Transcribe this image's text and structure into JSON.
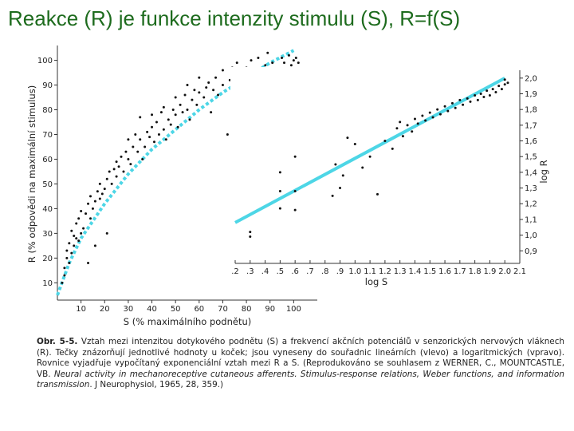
{
  "title": "Reakce (R) je funkce intenzity stimulu (S), R=f(S)",
  "colors": {
    "title": "#1d6b1d",
    "fit_line": "#4dd6e6",
    "points": "#111111"
  },
  "chart_data": [
    {
      "type": "scatter",
      "panel": "left",
      "xlabel": "S (% maximálního podnětu)",
      "ylabel": "R (% odpovědi na maximální stimulus)",
      "xlim": [
        0,
        110
      ],
      "ylim": [
        3,
        106
      ],
      "x_ticks": [
        "10",
        "20",
        "30",
        "40",
        "50",
        "60",
        "70",
        "80",
        "90",
        "100"
      ],
      "y_ticks": [
        "10",
        "20",
        "30",
        "40",
        "50",
        "60",
        "70",
        "80",
        "90",
        "100"
      ],
      "fit_curve": {
        "x": [
          0,
          5,
          10,
          20,
          30,
          40,
          50,
          60,
          70,
          80,
          90,
          100
        ],
        "y": [
          5,
          18,
          28,
          42,
          54,
          64,
          72,
          80,
          87,
          93,
          99,
          104
        ]
      },
      "points": [
        [
          2,
          10
        ],
        [
          3,
          13
        ],
        [
          3,
          16
        ],
        [
          4,
          20
        ],
        [
          4,
          23
        ],
        [
          5,
          18
        ],
        [
          5,
          26
        ],
        [
          6,
          22
        ],
        [
          6,
          31
        ],
        [
          7,
          25
        ],
        [
          7,
          29
        ],
        [
          8,
          28
        ],
        [
          8,
          34
        ],
        [
          9,
          27
        ],
        [
          9,
          36
        ],
        [
          10,
          30
        ],
        [
          10,
          39
        ],
        [
          11,
          32
        ],
        [
          12,
          38
        ],
        [
          13,
          18
        ],
        [
          13,
          42
        ],
        [
          14,
          36
        ],
        [
          14,
          45
        ],
        [
          15,
          40
        ],
        [
          16,
          25
        ],
        [
          16,
          43
        ],
        [
          17,
          47
        ],
        [
          18,
          44
        ],
        [
          18,
          50
        ],
        [
          19,
          46
        ],
        [
          20,
          48
        ],
        [
          21,
          30
        ],
        [
          21,
          52
        ],
        [
          22,
          55
        ],
        [
          23,
          50
        ],
        [
          24,
          56
        ],
        [
          25,
          53
        ],
        [
          25,
          59
        ],
        [
          26,
          57
        ],
        [
          27,
          61
        ],
        [
          28,
          55
        ],
        [
          29,
          63
        ],
        [
          30,
          60
        ],
        [
          30,
          68
        ],
        [
          31,
          58
        ],
        [
          32,
          65
        ],
        [
          33,
          70
        ],
        [
          34,
          63
        ],
        [
          35,
          68
        ],
        [
          35,
          77
        ],
        [
          36,
          60
        ],
        [
          37,
          65
        ],
        [
          38,
          71
        ],
        [
          39,
          69
        ],
        [
          40,
          73
        ],
        [
          40,
          78
        ],
        [
          41,
          67
        ],
        [
          42,
          75
        ],
        [
          43,
          70
        ],
        [
          44,
          79
        ],
        [
          45,
          72
        ],
        [
          45,
          81
        ],
        [
          46,
          68
        ],
        [
          47,
          76
        ],
        [
          48,
          74
        ],
        [
          49,
          80
        ],
        [
          50,
          78
        ],
        [
          50,
          85
        ],
        [
          51,
          73
        ],
        [
          52,
          82
        ],
        [
          53,
          79
        ],
        [
          54,
          86
        ],
        [
          55,
          80
        ],
        [
          55,
          90
        ],
        [
          56,
          76
        ],
        [
          57,
          84
        ],
        [
          58,
          88
        ],
        [
          59,
          82
        ],
        [
          60,
          87
        ],
        [
          60,
          93
        ],
        [
          62,
          85
        ],
        [
          63,
          89
        ],
        [
          64,
          91
        ],
        [
          65,
          79
        ],
        [
          66,
          88
        ],
        [
          67,
          93
        ],
        [
          68,
          86
        ],
        [
          70,
          90
        ],
        [
          70,
          96
        ],
        [
          72,
          70
        ],
        [
          73,
          92
        ],
        [
          74,
          97
        ],
        [
          75,
          88
        ],
        [
          76,
          99
        ],
        [
          78,
          93
        ],
        [
          78,
          30
        ],
        [
          79,
          28
        ],
        [
          80,
          97
        ],
        [
          81,
          91
        ],
        [
          82,
          100
        ],
        [
          83,
          86
        ],
        [
          84,
          95
        ],
        [
          85,
          101
        ],
        [
          86,
          94
        ],
        [
          87,
          90
        ],
        [
          88,
          98
        ],
        [
          89,
          103
        ],
        [
          90,
          96
        ],
        [
          91,
          99
        ],
        [
          92,
          93
        ],
        [
          95,
          101
        ],
        [
          96,
          99
        ],
        [
          98,
          102
        ],
        [
          99,
          98
        ],
        [
          100,
          100
        ],
        [
          101,
          101
        ],
        [
          102,
          99
        ]
      ]
    },
    {
      "type": "scatter",
      "panel": "right",
      "xlabel": "log S",
      "ylabel": "log R",
      "xlim": [
        0.2,
        2.1
      ],
      "ylim": [
        0.82,
        2.05
      ],
      "x_ticks": [
        ".2",
        ".3",
        ".4",
        ".5",
        ".6",
        ".7",
        ".8",
        ".9",
        "1.0",
        "1.1",
        "1.2",
        "1.3",
        "1.4",
        "1.5",
        "1.6",
        "1.7",
        "1.8",
        "1.9",
        "2.0",
        "2.1"
      ],
      "y_ticks": [
        "0,9",
        "1,0",
        "1,1",
        "1,2",
        "1,3",
        "1,4",
        "1,5",
        "1,6",
        "1,7",
        "1,8",
        "1,9",
        "2,0"
      ],
      "fit_line": {
        "x": [
          0.2,
          2.0
        ],
        "y": [
          1.08,
          2.0
        ]
      },
      "points": [
        [
          0.3,
          1.02
        ],
        [
          0.3,
          0.99
        ],
        [
          0.5,
          1.28
        ],
        [
          0.5,
          1.4
        ],
        [
          0.5,
          1.17
        ],
        [
          0.6,
          1.28
        ],
        [
          0.6,
          1.16
        ],
        [
          0.6,
          1.5
        ],
        [
          0.85,
          1.25
        ],
        [
          0.87,
          1.45
        ],
        [
          0.9,
          1.3
        ],
        [
          0.92,
          1.38
        ],
        [
          0.95,
          1.62
        ],
        [
          1.0,
          1.58
        ],
        [
          1.05,
          1.43
        ],
        [
          1.1,
          1.5
        ],
        [
          1.15,
          1.26
        ],
        [
          1.2,
          1.6
        ],
        [
          1.25,
          1.55
        ],
        [
          1.28,
          1.68
        ],
        [
          1.3,
          1.72
        ],
        [
          1.32,
          1.63
        ],
        [
          1.35,
          1.7
        ],
        [
          1.38,
          1.66
        ],
        [
          1.4,
          1.74
        ],
        [
          1.42,
          1.71
        ],
        [
          1.45,
          1.76
        ],
        [
          1.47,
          1.73
        ],
        [
          1.5,
          1.78
        ],
        [
          1.52,
          1.75
        ],
        [
          1.55,
          1.8
        ],
        [
          1.57,
          1.77
        ],
        [
          1.6,
          1.82
        ],
        [
          1.62,
          1.79
        ],
        [
          1.65,
          1.84
        ],
        [
          1.67,
          1.81
        ],
        [
          1.7,
          1.86
        ],
        [
          1.72,
          1.83
        ],
        [
          1.75,
          1.87
        ],
        [
          1.77,
          1.85
        ],
        [
          1.8,
          1.89
        ],
        [
          1.82,
          1.86
        ],
        [
          1.84,
          1.9
        ],
        [
          1.86,
          1.88
        ],
        [
          1.88,
          1.92
        ],
        [
          1.9,
          1.89
        ],
        [
          1.92,
          1.93
        ],
        [
          1.94,
          1.91
        ],
        [
          1.96,
          1.95
        ],
        [
          1.98,
          1.93
        ],
        [
          2.0,
          1.96
        ],
        [
          2.0,
          1.99
        ],
        [
          2.02,
          1.97
        ]
      ]
    }
  ],
  "caption": {
    "label": "Obr. 5-5.",
    "text_1": " Vztah mezi intenzitou dotykového podnětu (S) a frekvencí akčních potenciálů v senzorických nervových vláknech (R). Tečky znázorňují jednotlivé hodnoty u koček; jsou vyneseny do souřadnic lineárních ",
    "left_word": "(vlevo)",
    "text_2": " a logaritmických ",
    "right_word": "(vpravo)",
    "text_3": ". Rovnice vyjadřuje vypočítaný exponenciální vztah mezi R a S. (Reprodukováno se souhlasem z WERNER, C., MOUNTCASTLE, VB. ",
    "italic_ref": "Neural activity in mechanoreceptive cutaneous afferents. Stimulus-response relations, Weber functions, and information transmission",
    "text_4": ". J Neurophysiol, 1965, 28, 359.)"
  }
}
